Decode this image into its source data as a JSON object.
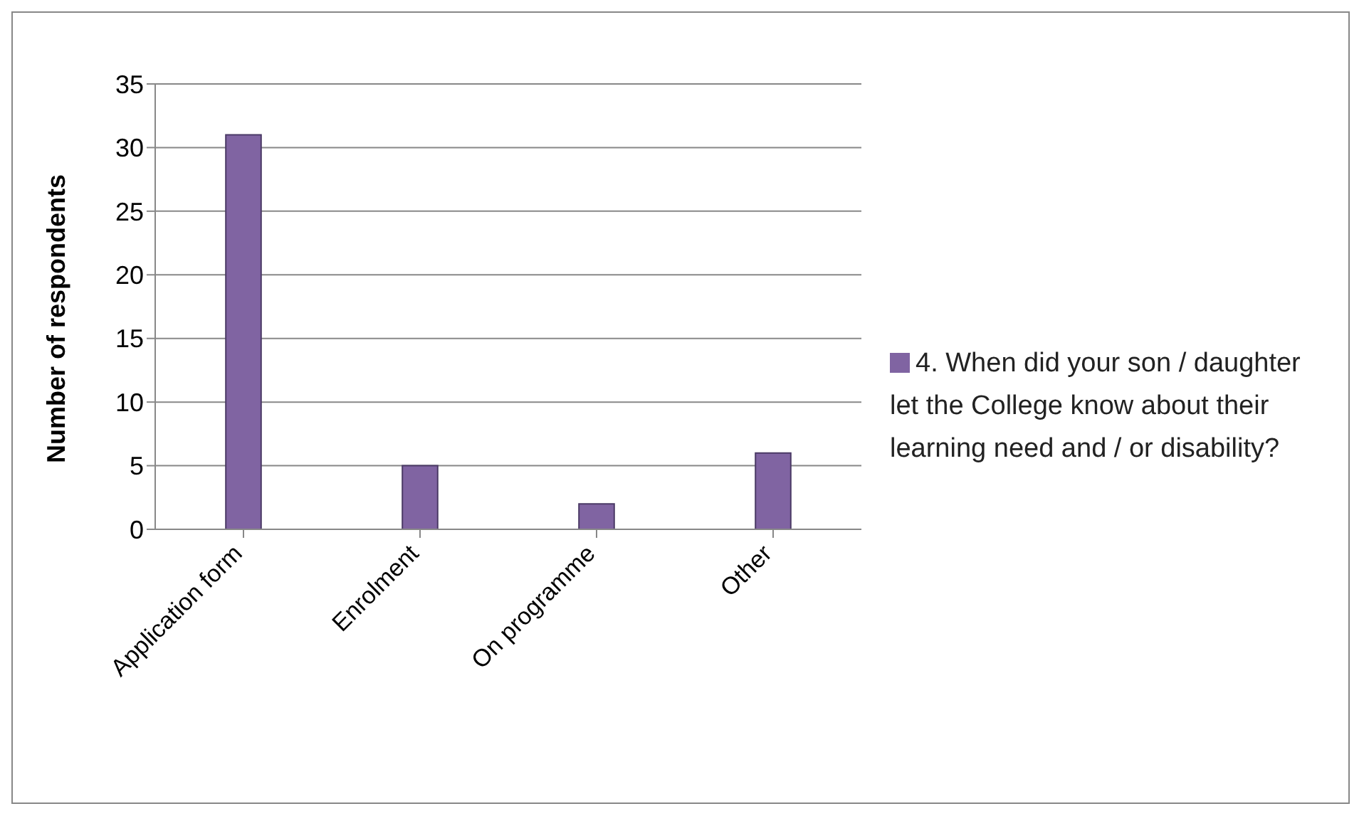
{
  "chart_data": {
    "type": "bar",
    "categories": [
      "Application form",
      "Enrolment",
      "On programme",
      "Other"
    ],
    "series": [
      {
        "name": "4. When did your son / daughter let the College know about their learning need and / or disability?",
        "color": "#8064a2",
        "values": [
          31,
          5,
          2,
          6
        ]
      }
    ],
    "ylabel": "Number of respondents",
    "ylim": [
      0,
      35
    ],
    "yticks": [
      0,
      5,
      10,
      15,
      20,
      25,
      30,
      35
    ],
    "grid": "y",
    "legend": "right"
  }
}
